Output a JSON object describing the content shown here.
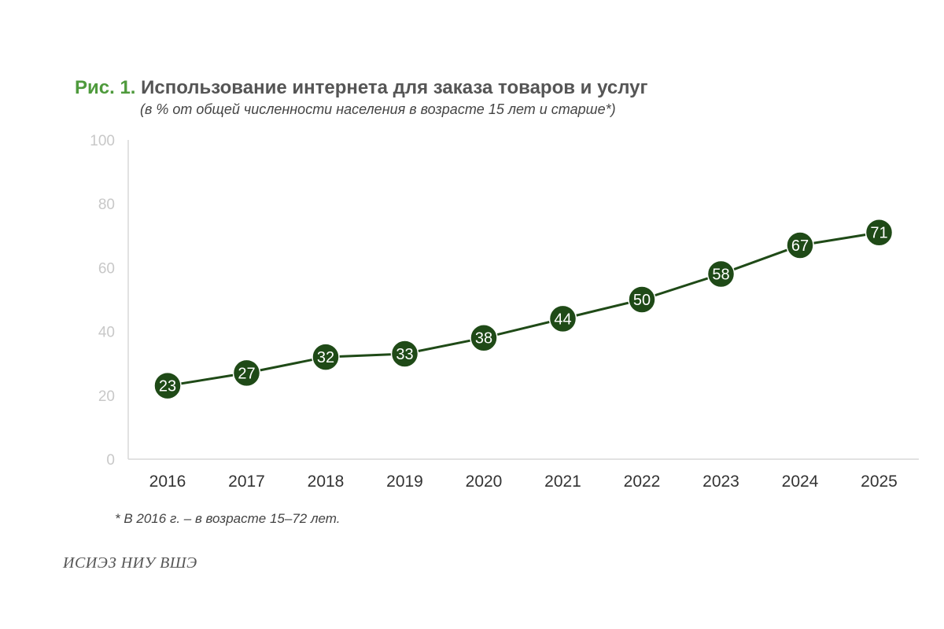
{
  "figure": {
    "title_prefix": "Рис. 1.",
    "title_text": "Использование интернета для заказа товаров и услуг",
    "subtitle": "(в % от общей численности населения в возрасте 15 лет и старше*)",
    "footnote": "* В 2016 г. – в возрасте 15–72 лет.",
    "source": "ИСИЭЗ НИУ ВШЭ"
  },
  "chart_data": {
    "type": "line",
    "title": "Использование интернета для заказа товаров и услуг",
    "subtitle": "(в % от общей численности населения в возрасте 15 лет и старше*)",
    "categories": [
      "2016",
      "2017",
      "2018",
      "2019",
      "2020",
      "2021",
      "2022",
      "2023",
      "2024",
      "2025"
    ],
    "series": [
      {
        "values": [
          23,
          27,
          32,
          33,
          38,
          44,
          50,
          58,
          67,
          71
        ]
      }
    ],
    "y_ticks": [
      0,
      20,
      40,
      60,
      80,
      100
    ],
    "ylim": [
      0,
      100
    ],
    "grid": false,
    "data_labels": true,
    "colors": {
      "line": "#1f4a17",
      "marker": "#1f4a17",
      "marker_label": "#ffffff",
      "axis": "#d9d9d9",
      "y_tick": "#c8c8c8"
    }
  }
}
